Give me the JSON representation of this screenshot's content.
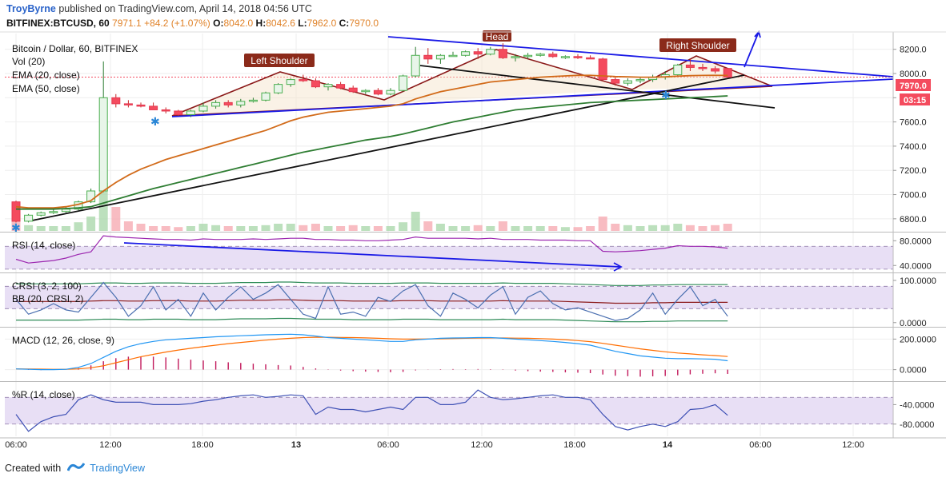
{
  "header": {
    "author": "TroyByrne",
    "published_text": "published on TradingView.com, April 14, 2018 04:56 UTC",
    "symbol": "BITFINEX:BTCUSD, 60",
    "last": "7971.1",
    "change": "+84.2 (+1.07%)",
    "o_label": "O:",
    "o": "8042.0",
    "h_label": "H:",
    "h": "8042.6",
    "l_label": "L:",
    "l": "7962.0",
    "c_label": "C:",
    "c": "7970.0"
  },
  "legend": {
    "main_title": "Bitcoin / Dollar, 60, BITFINEX",
    "vol": "Vol (20)",
    "ema20": "EMA (20, close)",
    "ema50": "EMA (50, close)"
  },
  "annotations": {
    "left_shoulder": "Left Shoulder",
    "head": "Head",
    "right_shoulder": "Right Shoulder"
  },
  "price_badges": {
    "current": "7970.0",
    "countdown": "03:15"
  },
  "footer": {
    "created_with": "Created with",
    "brand": "TradingView"
  },
  "colors": {
    "up": "#4caf50",
    "down": "#f44b5e",
    "ema20": "#d26b1a",
    "ema50": "#2e7d32",
    "trend_blue": "#1a1ae6",
    "trend_black": "#111111",
    "pattern": "#8b1a1a",
    "indicator_fill": "#e8dff5",
    "rsi_line": "#9c27b0",
    "macd": "#2196f3",
    "signal": "#ff6d00"
  },
  "chart_data": [
    {
      "type": "candlestick",
      "title": "Bitcoin / Dollar, 60, BITFINEX",
      "x_ticks": [
        "06:00",
        "12:00",
        "18:00",
        "13",
        "06:00",
        "12:00",
        "18:00",
        "14",
        "06:00",
        "12:00"
      ],
      "y_ticks": [
        8200.0,
        8000.0,
        7800.0,
        7600.0,
        7400.0,
        7200.0,
        7000.0,
        6800.0
      ],
      "ylim": [
        6700,
        8330
      ],
      "ohlc": [
        [
          6940,
          6950,
          6770,
          6780
        ],
        [
          6780,
          6840,
          6770,
          6830
        ],
        [
          6830,
          6860,
          6820,
          6850
        ],
        [
          6850,
          6880,
          6840,
          6860
        ],
        [
          6860,
          6900,
          6850,
          6880
        ],
        [
          6880,
          6950,
          6870,
          6940
        ],
        [
          6940,
          7050,
          6930,
          7030
        ],
        [
          7030,
          8100,
          7020,
          7800
        ],
        [
          7800,
          7830,
          7720,
          7750
        ],
        [
          7750,
          7780,
          7720,
          7740
        ],
        [
          7740,
          7760,
          7720,
          7730
        ],
        [
          7730,
          7760,
          7700,
          7700
        ],
        [
          7700,
          7720,
          7670,
          7690
        ],
        [
          7690,
          7700,
          7650,
          7660
        ],
        [
          7660,
          7700,
          7640,
          7690
        ],
        [
          7690,
          7760,
          7680,
          7730
        ],
        [
          7730,
          7780,
          7710,
          7760
        ],
        [
          7760,
          7780,
          7720,
          7740
        ],
        [
          7740,
          7790,
          7720,
          7770
        ],
        [
          7770,
          7800,
          7760,
          7780
        ],
        [
          7780,
          7850,
          7770,
          7840
        ],
        [
          7840,
          7920,
          7830,
          7910
        ],
        [
          7910,
          7960,
          7890,
          7950
        ],
        [
          7950,
          7990,
          7930,
          7940
        ],
        [
          7940,
          7960,
          7880,
          7890
        ],
        [
          7890,
          7920,
          7860,
          7910
        ],
        [
          7910,
          7930,
          7870,
          7880
        ],
        [
          7880,
          7900,
          7840,
          7850
        ],
        [
          7850,
          7870,
          7830,
          7860
        ],
        [
          7860,
          7880,
          7820,
          7830
        ],
        [
          7830,
          7880,
          7820,
          7860
        ],
        [
          7860,
          7990,
          7850,
          7980
        ],
        [
          7980,
          8220,
          7970,
          8150
        ],
        [
          8150,
          8210,
          8080,
          8120
        ],
        [
          8120,
          8160,
          8080,
          8150
        ],
        [
          8150,
          8180,
          8140,
          8150
        ],
        [
          8150,
          8190,
          8140,
          8180
        ],
        [
          8180,
          8210,
          8120,
          8160
        ],
        [
          8160,
          8220,
          8150,
          8200
        ],
        [
          8200,
          8250,
          8120,
          8130
        ],
        [
          8130,
          8160,
          8100,
          8140
        ],
        [
          8140,
          8170,
          8120,
          8150
        ],
        [
          8150,
          8170,
          8140,
          8160
        ],
        [
          8160,
          8180,
          8130,
          8140
        ],
        [
          8140,
          8150,
          8120,
          8140
        ],
        [
          8140,
          8160,
          8120,
          8130
        ],
        [
          8130,
          8150,
          8120,
          8120
        ],
        [
          8120,
          8130,
          7940,
          7950
        ],
        [
          7950,
          7970,
          7900,
          7920
        ],
        [
          7920,
          7960,
          7900,
          7940
        ],
        [
          7940,
          7970,
          7920,
          7950
        ],
        [
          7950,
          7990,
          7930,
          7970
        ],
        [
          7970,
          8020,
          7950,
          7990
        ],
        [
          7990,
          8080,
          7980,
          8070
        ],
        [
          8070,
          8120,
          8020,
          8050
        ],
        [
          8050,
          8080,
          8020,
          8040
        ],
        [
          8040,
          8060,
          8000,
          8020
        ],
        [
          8042,
          8043,
          7962,
          7970
        ]
      ],
      "volume": [
        0.45,
        0.12,
        0.1,
        0.1,
        0.1,
        0.18,
        0.3,
        1.0,
        0.5,
        0.2,
        0.15,
        0.1,
        0.1,
        0.08,
        0.1,
        0.15,
        0.12,
        0.1,
        0.1,
        0.1,
        0.12,
        0.15,
        0.15,
        0.12,
        0.15,
        0.1,
        0.1,
        0.12,
        0.1,
        0.1,
        0.1,
        0.18,
        0.4,
        0.2,
        0.15,
        0.1,
        0.1,
        0.12,
        0.1,
        0.2,
        0.1,
        0.1,
        0.1,
        0.1,
        0.08,
        0.08,
        0.1,
        0.3,
        0.15,
        0.12,
        0.1,
        0.12,
        0.12,
        0.15,
        0.12,
        0.1,
        0.12,
        0.15
      ],
      "ema20": [
        6900,
        6890,
        6890,
        6890,
        6900,
        6920,
        6950,
        7030,
        7100,
        7160,
        7210,
        7250,
        7290,
        7320,
        7350,
        7380,
        7410,
        7440,
        7470,
        7500,
        7530,
        7570,
        7610,
        7640,
        7660,
        7680,
        7690,
        7700,
        7710,
        7720,
        7730,
        7750,
        7790,
        7820,
        7850,
        7870,
        7890,
        7910,
        7930,
        7940,
        7950,
        7960,
        7970,
        7975,
        7980,
        7985,
        7985,
        7980,
        7975,
        7972,
        7970,
        7970,
        7972,
        7978,
        7982,
        7984,
        7985,
        7984
      ],
      "ema50": [
        6880,
        6880,
        6880,
        6880,
        6885,
        6890,
        6900,
        6930,
        6960,
        6990,
        7020,
        7050,
        7075,
        7100,
        7125,
        7150,
        7175,
        7200,
        7225,
        7250,
        7275,
        7300,
        7325,
        7350,
        7370,
        7390,
        7410,
        7430,
        7450,
        7465,
        7480,
        7500,
        7525,
        7550,
        7575,
        7600,
        7620,
        7640,
        7660,
        7680,
        7700,
        7710,
        7720,
        7730,
        7740,
        7750,
        7760,
        7765,
        7770,
        7775,
        7780,
        7785,
        7790,
        7795,
        7800,
        7805,
        7810,
        7815
      ],
      "current_price": 7970.0
    },
    {
      "type": "line",
      "title": "RSI (14, close)",
      "y_ticks": [
        80.0,
        40.0
      ],
      "ylim": [
        30,
        92
      ],
      "series": [
        {
          "values": [
            50,
            44,
            46,
            48,
            52,
            58,
            62,
            88,
            86,
            85,
            84,
            83,
            82,
            82,
            81,
            83,
            82,
            82,
            82,
            83,
            82,
            83,
            84,
            84,
            82,
            82,
            81,
            81,
            80,
            80,
            81,
            82,
            86,
            84,
            84,
            84,
            84,
            83,
            84,
            82,
            82,
            82,
            81,
            81,
            81,
            80,
            80,
            63,
            62,
            63,
            64,
            66,
            68,
            72,
            71,
            71,
            70,
            68
          ]
        }
      ]
    },
    {
      "type": "line",
      "title": "CRSI (3, 2, 100)",
      "y_ticks": [
        100.0,
        0.0
      ],
      "ylim": [
        -8,
        115
      ],
      "series": [
        {
          "name": "CRSI (3, 2, 100)",
          "values": [
            55,
            20,
            30,
            45,
            30,
            25,
            60,
            95,
            60,
            15,
            40,
            85,
            30,
            55,
            15,
            70,
            30,
            60,
            85,
            55,
            70,
            90,
            55,
            20,
            10,
            85,
            20,
            25,
            15,
            60,
            50,
            75,
            90,
            40,
            15,
            70,
            55,
            35,
            65,
            85,
            20,
            60,
            75,
            45,
            30,
            35,
            25,
            15,
            5,
            10,
            30,
            70,
            20,
            55,
            85,
            40,
            55,
            15
          ]
        },
        {
          "name": "BB (20, CRSI, 2)",
          "values": [
            50,
            50,
            50,
            50,
            50,
            50,
            51,
            52,
            52,
            51,
            51,
            52,
            52,
            52,
            51,
            51,
            51,
            52,
            53,
            53,
            53,
            54,
            54,
            53,
            52,
            52,
            52,
            51,
            51,
            51,
            51,
            52,
            52,
            52,
            51,
            51,
            51,
            51,
            51,
            52,
            51,
            51,
            51,
            51,
            50,
            49,
            48,
            47,
            46,
            46,
            46,
            47,
            47,
            48,
            48,
            48,
            48,
            48
          ]
        }
      ]
    },
    {
      "type": "line",
      "title": "MACD (12, 26, close, 9)",
      "y_ticks": [
        200.0,
        0.0
      ],
      "ylim": [
        -70,
        270
      ],
      "series": [
        {
          "name": "MACD",
          "values": [
            5,
            2,
            0,
            0,
            2,
            15,
            40,
            80,
            120,
            150,
            170,
            185,
            195,
            200,
            205,
            210,
            215,
            218,
            222,
            225,
            228,
            230,
            232,
            228,
            220,
            210,
            205,
            200,
            195,
            190,
            185,
            185,
            195,
            200,
            205,
            207,
            208,
            210,
            210,
            205,
            200,
            195,
            190,
            185,
            178,
            170,
            160,
            140,
            120,
            105,
            90,
            82,
            75,
            72,
            72,
            70,
            68,
            58
          ]
        },
        {
          "name": "Signal",
          "values": [
            5,
            4,
            3,
            2,
            2,
            5,
            12,
            25,
            45,
            65,
            85,
            100,
            115,
            128,
            140,
            150,
            160,
            170,
            178,
            186,
            193,
            200,
            205,
            210,
            212,
            212,
            211,
            210,
            208,
            205,
            202,
            200,
            200,
            201,
            202,
            203,
            205,
            206,
            207,
            207,
            206,
            205,
            203,
            200,
            196,
            190,
            183,
            172,
            160,
            148,
            136,
            126,
            117,
            109,
            103,
            97,
            92,
            86
          ]
        }
      ]
    },
    {
      "type": "line",
      "title": "%R (14, close)",
      "y_ticks": [
        -40.0,
        -80.0
      ],
      "ylim": [
        -105,
        5
      ],
      "series": [
        {
          "values": [
            -60,
            -95,
            -75,
            -65,
            -60,
            -30,
            -20,
            -30,
            -35,
            -35,
            -35,
            -40,
            -40,
            -40,
            -38,
            -33,
            -30,
            -25,
            -22,
            -20,
            -25,
            -23,
            -20,
            -22,
            -60,
            -45,
            -50,
            -50,
            -55,
            -50,
            -45,
            -50,
            -25,
            -25,
            -40,
            -40,
            -35,
            -10,
            -25,
            -30,
            -28,
            -25,
            -22,
            -20,
            -25,
            -25,
            -30,
            -60,
            -85,
            -92,
            -85,
            -80,
            -85,
            -75,
            -50,
            -48,
            -40,
            -62
          ]
        }
      ]
    }
  ]
}
